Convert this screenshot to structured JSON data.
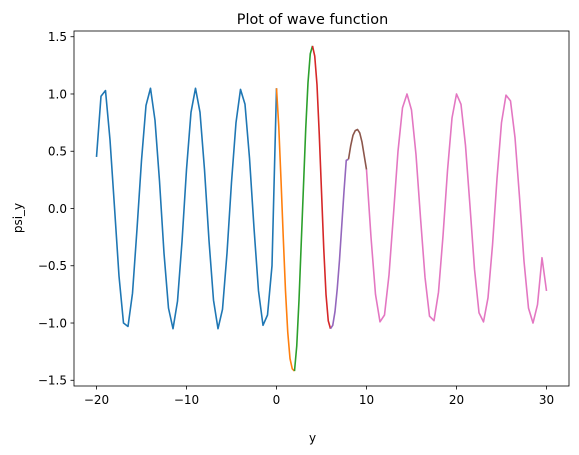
{
  "chart_data": {
    "type": "line",
    "title": "Plot of wave function",
    "xlabel": "y",
    "ylabel": "psi_y",
    "xlim": [
      -22.5,
      32.5
    ],
    "ylim": [
      -1.55,
      1.55
    ],
    "xticks": [
      -20,
      -10,
      0,
      10,
      20,
      30
    ],
    "xtick_labels": [
      "−20",
      "−10",
      "0",
      "10",
      "20",
      "30"
    ],
    "yticks": [
      -1.5,
      -1.0,
      -0.5,
      0.0,
      0.5,
      1.0,
      1.5
    ],
    "ytick_labels": [
      "−1.5",
      "−1.0",
      "−0.5",
      "0.0",
      "0.5",
      "1.0",
      "1.5"
    ],
    "grid": false,
    "legend": null,
    "series": [
      {
        "color": "#1f77b4",
        "x": [
          -20,
          -19.5,
          -19,
          -18.5,
          -18,
          -17.5,
          -17,
          -16.5,
          -16,
          -15.5,
          -15,
          -14.5,
          -14,
          -13.5,
          -13,
          -12.5,
          -12,
          -11.5,
          -11,
          -10.5,
          -10,
          -9.5,
          -9,
          -8.5,
          -8,
          -7.5,
          -7,
          -6.5,
          -6,
          -5.5,
          -5,
          -4.5,
          -4,
          -3.5,
          -3,
          -2.5,
          -2,
          -1.5,
          -1,
          -0.5,
          0
        ],
        "y": [
          0.45,
          0.98,
          1.03,
          0.6,
          0.01,
          -0.59,
          -1.0,
          -1.03,
          -0.74,
          -0.18,
          0.42,
          0.9,
          1.05,
          0.77,
          0.24,
          -0.39,
          -0.87,
          -1.05,
          -0.81,
          -0.29,
          0.34,
          0.84,
          1.05,
          0.84,
          0.34,
          -0.28,
          -0.8,
          -1.05,
          -0.88,
          -0.39,
          0.23,
          0.75,
          1.04,
          0.91,
          0.44,
          -0.17,
          -0.72,
          -1.02,
          -0.93,
          -0.5,
          1.05
        ]
      },
      {
        "color": "#ff7f0e",
        "x": [
          0,
          0.25,
          0.5,
          0.75,
          1,
          1.25,
          1.5,
          1.75,
          2
        ],
        "y": [
          1.05,
          0.72,
          0.25,
          -0.25,
          -0.72,
          -1.08,
          -1.31,
          -1.4,
          -1.42
        ]
      },
      {
        "color": "#2ca02c",
        "x": [
          2,
          2.25,
          2.5,
          2.75,
          3,
          3.25,
          3.5,
          3.75,
          4
        ],
        "y": [
          -1.42,
          -1.2,
          -0.8,
          -0.3,
          0.2,
          0.7,
          1.1,
          1.35,
          1.42
        ]
      },
      {
        "color": "#d62728",
        "x": [
          4,
          4.25,
          4.5,
          4.75,
          5,
          5.25,
          5.5,
          5.75,
          6
        ],
        "y": [
          1.42,
          1.33,
          1.08,
          0.65,
          0.15,
          -0.35,
          -0.75,
          -0.98,
          -1.05
        ]
      },
      {
        "color": "#9467bd",
        "x": [
          6,
          6.25,
          6.5,
          6.75,
          7,
          7.25,
          7.5,
          7.75,
          8
        ],
        "y": [
          -1.05,
          -1.02,
          -0.9,
          -0.7,
          -0.45,
          -0.15,
          0.15,
          0.42,
          0.43
        ]
      },
      {
        "color": "#8c564b",
        "x": [
          8,
          8.25,
          8.5,
          8.75,
          9,
          9.25,
          9.5,
          9.75,
          10
        ],
        "y": [
          0.43,
          0.55,
          0.64,
          0.68,
          0.69,
          0.66,
          0.58,
          0.46,
          0.34
        ]
      },
      {
        "color": "#e377c2",
        "x": [
          10,
          10.5,
          11,
          11.5,
          12,
          12.5,
          13,
          13.5,
          14,
          14.5,
          15,
          15.5,
          16,
          16.5,
          17,
          17.5,
          18,
          18.5,
          19,
          19.5,
          20,
          20.5,
          21,
          21.5,
          22,
          22.5,
          23,
          23.5,
          24,
          24.5,
          25,
          25.5,
          26,
          26.5,
          27,
          27.5,
          28,
          28.5,
          29,
          29.5,
          30
        ],
        "y": [
          0.34,
          -0.25,
          -0.75,
          -0.99,
          -0.93,
          -0.58,
          -0.05,
          0.5,
          0.88,
          1.0,
          0.86,
          0.47,
          -0.08,
          -0.6,
          -0.94,
          -0.98,
          -0.73,
          -0.24,
          0.33,
          0.79,
          1.0,
          0.91,
          0.55,
          0.02,
          -0.53,
          -0.91,
          -0.99,
          -0.78,
          -0.32,
          0.26,
          0.75,
          0.99,
          0.94,
          0.62,
          0.1,
          -0.46,
          -0.87,
          -1.0,
          -0.84,
          -0.43,
          -0.72
        ]
      }
    ]
  }
}
